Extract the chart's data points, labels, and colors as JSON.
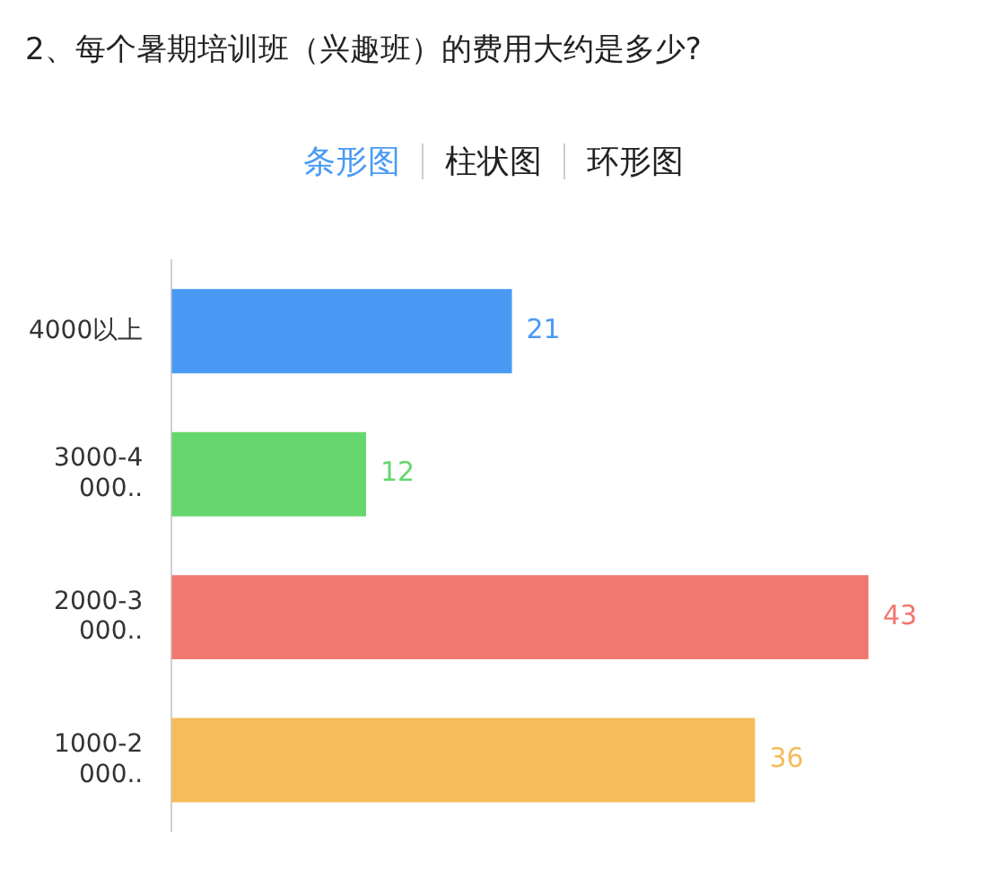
{
  "chart_data": {
    "type": "bar",
    "orientation": "horizontal",
    "title": "2、每个暑期培训班（兴趣班）的费用大约是多少?",
    "annotations": [
      "条形图",
      "柱状图",
      "环形图"
    ],
    "categories": [
      "4000以上",
      "3000-4000..",
      "2000-3000..",
      "1000-2000.."
    ],
    "values": [
      21,
      12,
      43,
      36
    ],
    "colors": [
      "#4a9af5",
      "#66d66e",
      "#f07870",
      "#f5bb5c"
    ],
    "data_labels": true,
    "grid": false,
    "legend": false
  }
}
